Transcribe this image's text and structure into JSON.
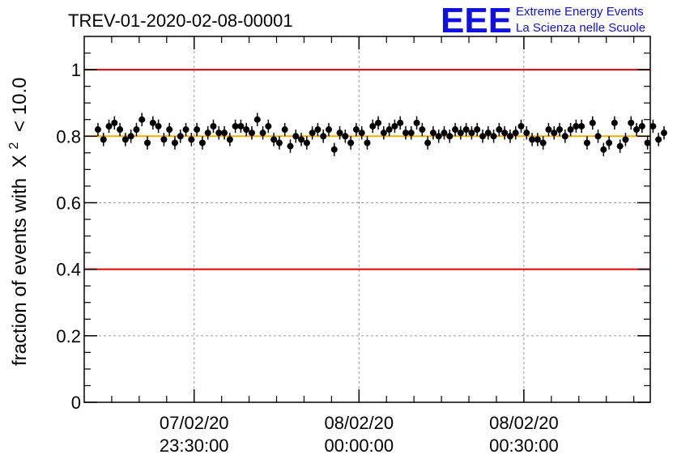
{
  "header": {
    "title": "TREV-01-2020-02-08-00001",
    "logo": {
      "mark": "EEE",
      "line1": "Extreme Energy Events",
      "line2": "La Scienza nelle Scuole",
      "color": "#1010e0"
    }
  },
  "chart_data": {
    "type": "scatter",
    "title": "TREV-01-2020-02-08-00001",
    "ylabel": "fraction of events with",
    "ylabel_math": {
      "base": "X",
      "sup": "2",
      "tail": "< 10.0"
    },
    "xlabel": "",
    "ylim": [
      0,
      1.1
    ],
    "xlim": [
      -2.5,
      100.5
    ],
    "yticks": [
      0,
      0.2,
      0.4,
      0.6,
      0.8,
      1
    ],
    "ytick_labels": [
      "0",
      "0.2",
      "0.4",
      "0.6",
      "0.8",
      "1"
    ],
    "xticks": [
      {
        "x": 17.5,
        "label_date": "07/02/20",
        "label_time": "23:30:00"
      },
      {
        "x": 47.5,
        "label_date": "08/02/20",
        "label_time": "00:00:00"
      },
      {
        "x": 77.5,
        "label_date": "08/02/20",
        "label_time": "00:30:00"
      }
    ],
    "grid": true,
    "reference_lines": [
      {
        "y": 1.0,
        "color": "#e00000"
      },
      {
        "y": 0.4,
        "color": "#e00000"
      },
      {
        "y": 0.8,
        "color": "#f0b000"
      }
    ],
    "series": [
      {
        "marker_color": "#000000",
        "error": 0.02,
        "values": [
          0.82,
          0.79,
          0.83,
          0.84,
          0.82,
          0.79,
          0.8,
          0.82,
          0.85,
          0.78,
          0.84,
          0.83,
          0.79,
          0.82,
          0.78,
          0.8,
          0.82,
          0.79,
          0.82,
          0.78,
          0.81,
          0.83,
          0.81,
          0.81,
          0.79,
          0.83,
          0.83,
          0.82,
          0.81,
          0.85,
          0.81,
          0.83,
          0.79,
          0.78,
          0.82,
          0.77,
          0.8,
          0.79,
          0.78,
          0.81,
          0.82,
          0.8,
          0.82,
          0.76,
          0.81,
          0.8,
          0.78,
          0.82,
          0.81,
          0.78,
          0.83,
          0.84,
          0.81,
          0.82,
          0.83,
          0.84,
          0.81,
          0.81,
          0.84,
          0.82,
          0.78,
          0.81,
          0.8,
          0.81,
          0.8,
          0.82,
          0.81,
          0.82,
          0.81,
          0.82,
          0.8,
          0.81,
          0.8,
          0.82,
          0.81,
          0.8,
          0.81,
          0.83,
          0.81,
          0.79,
          0.79,
          0.78,
          0.82,
          0.81,
          0.82,
          0.8,
          0.82,
          0.83,
          0.83,
          0.78,
          0.84,
          0.8,
          0.76,
          0.78,
          0.84,
          0.77,
          0.79,
          0.84,
          0.82,
          0.83,
          0.78,
          0.83,
          0.79,
          0.81
        ]
      }
    ]
  }
}
